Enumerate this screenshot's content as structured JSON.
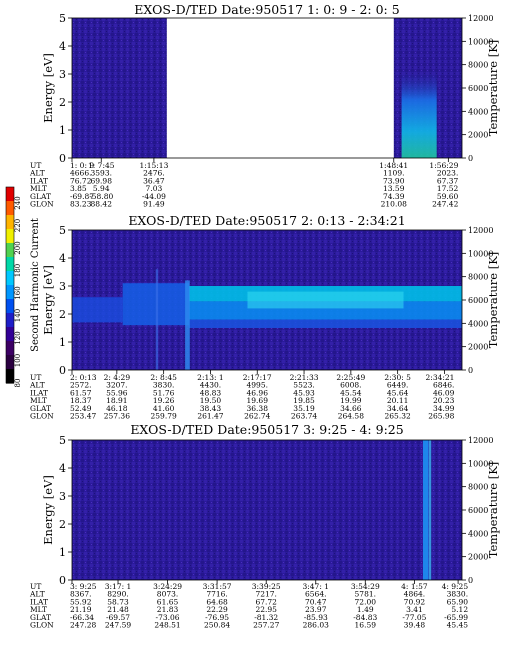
{
  "colorbar": {
    "label": "Second Harmonic Current",
    "ticks": [
      "240",
      "220",
      "200",
      "180",
      "160",
      "140",
      "120",
      "100",
      "80"
    ],
    "colors": [
      "#e00000",
      "#ff5a00",
      "#ffb400",
      "#f0f000",
      "#50d250",
      "#00d8a8",
      "#00c8ff",
      "#0096ff",
      "#0050f0",
      "#1e1ec8",
      "#320096",
      "#3c0064",
      "#2a0040",
      "#000000"
    ]
  },
  "panels": [
    {
      "title": "EXOS-D/TED   Date:950517  1: 0: 9 - 2: 0: 5",
      "ylabel": "Energy [eV]",
      "y2label": "Temperature [K]",
      "yticks": [
        "0",
        "1",
        "2",
        "3",
        "4",
        "5"
      ],
      "y2ticks": [
        "0",
        "2000",
        "4000",
        "6000",
        "8000",
        "10000",
        "12000"
      ],
      "ylim": [
        0,
        5
      ],
      "y2lim": [
        0,
        12000
      ],
      "gaps": [
        [
          0.243,
          0.825
        ]
      ],
      "bands": [],
      "spikes": [],
      "burst": {
        "x0": 0.845,
        "x1": 0.935,
        "e_top": 3.2
      },
      "table": {
        "labels": [
          "UT",
          "ALT",
          "ILAT",
          "MLT",
          "GLAT",
          "GLON"
        ],
        "columns": [
          {
            "x": 0.0,
            "values": [
              "1: 0: 9",
              "4666.",
              "76.72",
              "3.85",
              "-69.87",
              "83.23"
            ]
          },
          {
            "x": 0.075,
            "values": [
              "1: 7:45",
              "3593.",
              "69.98",
              "5.94",
              "-58.80",
              "88.42"
            ]
          },
          {
            "x": 0.21,
            "values": [
              "1:15:13",
              "2476.",
              "36.47",
              "7.03",
              "-44.09",
              "91.49"
            ]
          },
          {
            "x": 0.825,
            "values": [
              "1:48:41",
              "1109.",
              "73.90",
              "13.59",
              "74.39",
              "210.08"
            ]
          },
          {
            "x": 0.965,
            "values": [
              "1:56:29",
              "2023.",
              "67.37",
              "17.52",
              "59.60",
              "247.42"
            ]
          }
        ]
      }
    },
    {
      "title": "EXOS-D/TED   Date:950517  2: 0:13 - 2:34:21",
      "ylabel": "Energy [eV]",
      "y2label": "Temperature [K]",
      "yticks": [
        "0",
        "1",
        "2",
        "3",
        "4",
        "5"
      ],
      "y2ticks": [
        "0",
        "2000",
        "4000",
        "6000",
        "8000",
        "10000",
        "12000"
      ],
      "ylim": [
        0,
        5
      ],
      "y2lim": [
        0,
        12000
      ],
      "gaps": [],
      "bands": [
        {
          "x0": 0.0,
          "x1": 0.13,
          "e0": 1.7,
          "e1": 2.6,
          "color": "#1a4ee0",
          "opacity": 0.8
        },
        {
          "x0": 0.13,
          "x1": 0.3,
          "e0": 1.6,
          "e1": 3.1,
          "color": "#1560e8",
          "opacity": 0.85
        },
        {
          "x0": 0.3,
          "x1": 1.0,
          "e0": 2.45,
          "e1": 3.0,
          "color": "#00bfe8",
          "opacity": 0.9
        },
        {
          "x0": 0.3,
          "x1": 1.0,
          "e0": 1.8,
          "e1": 2.45,
          "color": "#0a8af0",
          "opacity": 0.9
        },
        {
          "x0": 0.3,
          "x1": 1.0,
          "e0": 1.5,
          "e1": 1.8,
          "color": "#1a55e0",
          "opacity": 0.85
        },
        {
          "x0": 0.45,
          "x1": 0.85,
          "e0": 2.2,
          "e1": 2.8,
          "color": "#30d8f0",
          "opacity": 0.6
        }
      ],
      "spikes": [
        {
          "x": 0.29,
          "width": 0.012,
          "e0": 0,
          "e1": 3.2,
          "color": "#2d8cf0",
          "opacity": 0.8
        },
        {
          "x": 0.215,
          "width": 0.006,
          "e0": 0,
          "e1": 3.6,
          "color": "#3a70e8",
          "opacity": 0.6
        }
      ],
      "burst": null,
      "table": {
        "labels": [
          "UT",
          "ALT",
          "ILAT",
          "MLT",
          "GLAT",
          "GLON"
        ],
        "columns": [
          {
            "x": 0.0,
            "values": [
              "2: 0:13",
              "2572.",
              "61.57",
              "18.37",
              "52.49",
              "253.47"
            ]
          },
          {
            "x": 0.115,
            "values": [
              "2: 4:29",
              "3207.",
              "55.96",
              "18.91",
              "46.18",
              "257.36"
            ]
          },
          {
            "x": 0.235,
            "values": [
              "2: 8:45",
              "3830.",
              "51.76",
              "19.26",
              "41.60",
              "259.79"
            ]
          },
          {
            "x": 0.355,
            "values": [
              "2:13: 1",
              "4430.",
              "48.83",
              "19.50",
              "38.43",
              "261.47"
            ]
          },
          {
            "x": 0.475,
            "values": [
              "2:17:17",
              "4995.",
              "46.96",
              "19.69",
              "36.38",
              "262.74"
            ]
          },
          {
            "x": 0.595,
            "values": [
              "2:21:33",
              "5523.",
              "45.93",
              "19.85",
              "35.19",
              "263.74"
            ]
          },
          {
            "x": 0.715,
            "values": [
              "2:25:49",
              "6008.",
              "45.54",
              "19.99",
              "34.66",
              "264.58"
            ]
          },
          {
            "x": 0.835,
            "values": [
              "2:30: 5",
              "6449.",
              "45.64",
              "20.11",
              "34.64",
              "265.32"
            ]
          },
          {
            "x": 0.955,
            "values": [
              "2:34:21",
              "6846.",
              "46.09",
              "20.23",
              "34.99",
              "265.98"
            ]
          }
        ]
      }
    },
    {
      "title": "EXOS-D/TED   Date:950517  3: 9:25 - 4: 9:25",
      "ylabel": "Energy [eV]",
      "y2label": "Temperature [K]",
      "yticks": [
        "0",
        "1",
        "2",
        "3",
        "4",
        "5"
      ],
      "y2ticks": [
        "0",
        "2000",
        "4000",
        "6000",
        "8000",
        "10000",
        "12000"
      ],
      "ylim": [
        0,
        5
      ],
      "y2lim": [
        0,
        12000
      ],
      "gaps": [],
      "bands": [],
      "spikes": [
        {
          "x": 0.9,
          "width": 0.014,
          "e0": 0,
          "e1": 5,
          "color": "#1e8cf0",
          "opacity": 0.95
        },
        {
          "x": 0.915,
          "width": 0.006,
          "e0": 0,
          "e1": 5,
          "color": "#3cb4f0",
          "opacity": 0.8
        }
      ],
      "burst": null,
      "table": {
        "labels": [
          "UT",
          "ALT",
          "ILAT",
          "MLT",
          "GLAT",
          "GLON"
        ],
        "columns": [
          {
            "x": 0.0,
            "values": [
              "3: 9:25",
              "8367.",
              "55.92",
              "21.19",
              "-66.34",
              "247.28"
            ]
          },
          {
            "x": 0.118,
            "values": [
              "3:17: 1",
              "8290.",
              "58.73",
              "21.48",
              "-69.57",
              "247.59"
            ]
          },
          {
            "x": 0.245,
            "values": [
              "3:24:29",
              "8073.",
              "61.65",
              "21.83",
              "-73.06",
              "248.51"
            ]
          },
          {
            "x": 0.372,
            "values": [
              "3:31:57",
              "7716.",
              "64.68",
              "22.29",
              "-76.95",
              "250.84"
            ]
          },
          {
            "x": 0.498,
            "values": [
              "3:39:25",
              "7217.",
              "67.72",
              "22.95",
              "-81.32",
              "257.27"
            ]
          },
          {
            "x": 0.625,
            "values": [
              "3:47: 1",
              "6564.",
              "70.47",
              "23.97",
              "-85.93",
              "286.03"
            ]
          },
          {
            "x": 0.752,
            "values": [
              "3:54:29",
              "5781.",
              "72.00",
              "1.49",
              "-84.83",
              "16.59"
            ]
          },
          {
            "x": 0.878,
            "values": [
              "4: 1:57",
              "4864.",
              "70.92",
              "3.41",
              "-77.05",
              "39.48"
            ]
          },
          {
            "x": 0.99,
            "values": [
              "4: 9:25",
              "3830.",
              "65.90",
              "5.12",
              "-65.99",
              "45.45"
            ]
          }
        ]
      }
    }
  ],
  "chart_data": [
    {
      "type": "heatmap",
      "title": "EXOS-D/TED   Date:950517  1: 0: 9 - 2: 0: 5",
      "xlabel": "",
      "ylabel": "Energy [eV]",
      "y2label": "Temperature [K]",
      "x_range": [
        "1: 0: 9",
        "1:56:29"
      ],
      "ylim": [
        0,
        5
      ],
      "y2lim": [
        0,
        12000
      ],
      "x_tick_labels": [
        "1: 0: 9",
        "1: 7:45",
        "1:15:13",
        "1:48:41",
        "1:56:29"
      ],
      "data_gap": [
        "1:15:13",
        "1:48:41"
      ],
      "features": [
        {
          "time": "1:48:41 - 1:56:29",
          "energy_range": [
            0.3,
            3.2
          ],
          "intensity": "enhanced (green-cyan)"
        }
      ],
      "colorbar_label": "Second Harmonic Current",
      "colorbar_range": [
        80,
        240
      ]
    },
    {
      "type": "heatmap",
      "title": "EXOS-D/TED   Date:950517  2: 0:13 - 2:34:21",
      "xlabel": "",
      "ylabel": "Energy [eV]",
      "y2label": "Temperature [K]",
      "x_range": [
        "2: 0:13",
        "2:34:21"
      ],
      "ylim": [
        0,
        5
      ],
      "y2lim": [
        0,
        12000
      ],
      "x_tick_labels": [
        "2: 0:13",
        "2: 4:29",
        "2: 8:45",
        "2:13: 1",
        "2:17:17",
        "2:21:33",
        "2:25:49",
        "2:30: 5",
        "2:34:21"
      ],
      "features": [
        {
          "time": "2: 0:13 - 2: 8:45",
          "energy_range": [
            1.6,
            3.1
          ],
          "intensity": "moderate (blue)"
        },
        {
          "time": "2: 9:30 - 2:34:21",
          "energy_range": [
            1.5,
            3.0
          ],
          "intensity": "strong (cyan)"
        }
      ],
      "colorbar_label": "Second Harmonic Current",
      "colorbar_range": [
        80,
        240
      ]
    },
    {
      "type": "heatmap",
      "title": "EXOS-D/TED   Date:950517  3: 9:25 - 4: 9:25",
      "xlabel": "",
      "ylabel": "Energy [eV]",
      "y2label": "Temperature [K]",
      "x_range": [
        "3: 9:25",
        "4: 9:25"
      ],
      "ylim": [
        0,
        5
      ],
      "y2lim": [
        0,
        12000
      ],
      "x_tick_labels": [
        "3: 9:25",
        "3:17: 1",
        "3:24:29",
        "3:31:57",
        "3:39:25",
        "3:47: 1",
        "3:54:29",
        "4: 1:57",
        "4: 9:25"
      ],
      "features": [
        {
          "time": "4: 3:30",
          "energy_range": [
            0,
            5
          ],
          "intensity": "narrow vertical enhancement (blue)"
        }
      ],
      "colorbar_label": "Second Harmonic Current",
      "colorbar_range": [
        80,
        240
      ]
    }
  ]
}
